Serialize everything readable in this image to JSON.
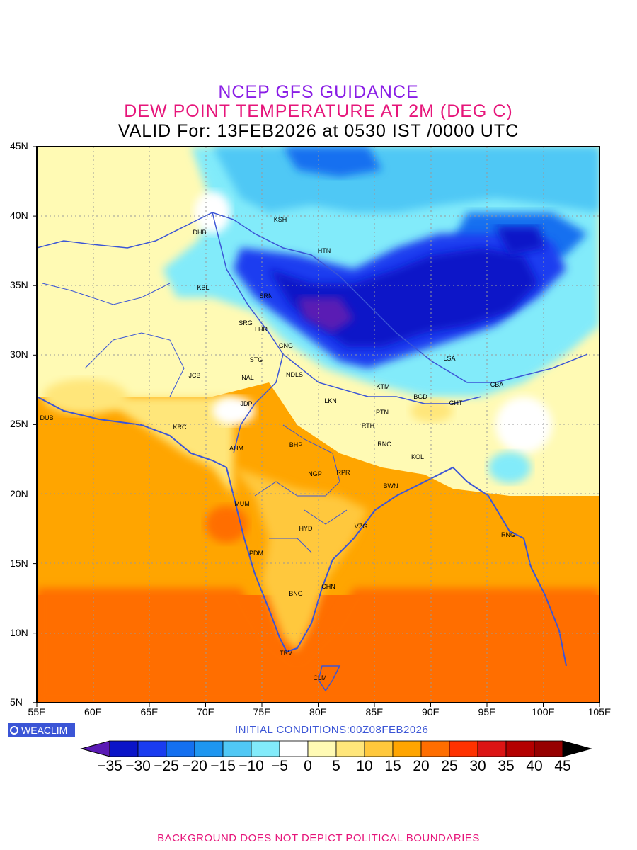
{
  "header": {
    "line1": "NCEP GFS GUIDANCE",
    "line2": "DEW POINT TEMPERATURE AT 2M (DEG C)",
    "line3": "VALID For: 13FEB2026 at 0530 IST /0000 UTC"
  },
  "axes": {
    "lat_labels": [
      "45N",
      "40N",
      "35N",
      "30N",
      "25N",
      "20N",
      "15N",
      "10N",
      "5N"
    ],
    "lon_labels": [
      "55E",
      "60E",
      "65E",
      "70E",
      "75E",
      "80E",
      "85E",
      "90E",
      "95E",
      "100E",
      "105E"
    ]
  },
  "logo": {
    "text": "WEACLIM"
  },
  "initial_conditions": "INITIAL CONDITIONS:00Z08FEB2026",
  "colorbar": {
    "colors": [
      "#5a1ab4",
      "#0a14c8",
      "#1a3cf0",
      "#1470f0",
      "#1e96f0",
      "#50c8f5",
      "#82ebfa",
      "#ffffff",
      "#fffab4",
      "#ffe67a",
      "#ffc83c",
      "#ffa500",
      "#ff6e00",
      "#ff3200",
      "#dc1414",
      "#b40000",
      "#960000",
      "#000000"
    ],
    "labels": [
      "-35",
      "-30",
      "-25",
      "-20",
      "-15",
      "-10",
      "-5",
      "0",
      "5",
      "10",
      "15",
      "20",
      "25",
      "30",
      "35",
      "40",
      "45"
    ]
  },
  "stations": [
    "KSH",
    "DHB",
    "HTN",
    "KBL",
    "SRN",
    "SRG",
    "LHR",
    "CNG",
    "STG",
    "NAL",
    "JCB",
    "NDLS",
    "JDP",
    "LKN",
    "KTM",
    "BGD",
    "GHT",
    "CBA",
    "LSA",
    "PTN",
    "RTH",
    "DUB",
    "KRC",
    "BHP",
    "RNC",
    "KOL",
    "AHM",
    "NGP",
    "RPR",
    "BWN",
    "MUM",
    "HYD",
    "VZG",
    "RNG",
    "PDM",
    "BNG",
    "CHN",
    "TRV",
    "CLM"
  ],
  "footer": "BACKGROUND DOES NOT DEPICT POLITICAL BOUNDARIES"
}
